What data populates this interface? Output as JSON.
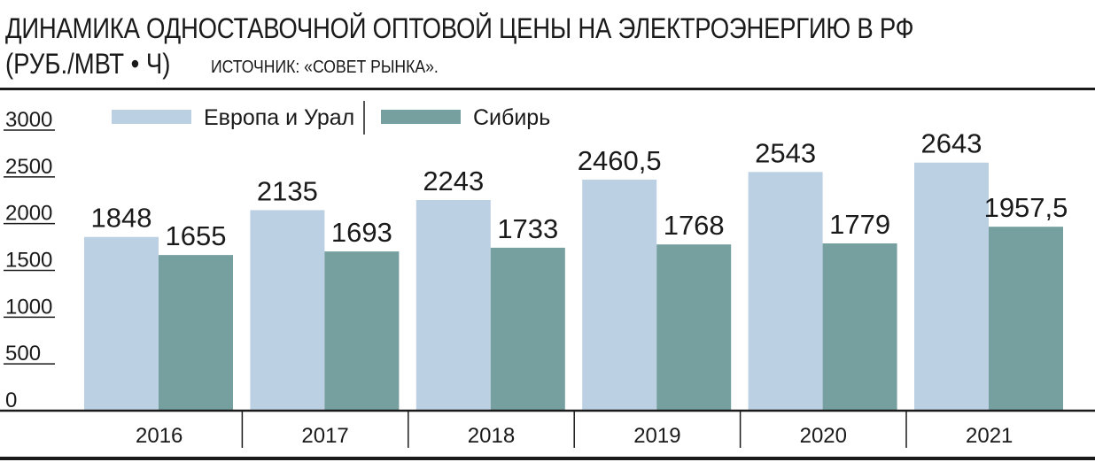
{
  "title": {
    "main": "ДИНАМИКА ОДНОСТАВОЧНОЙ ОПТОВОЙ ЦЕНЫ НА ЭЛЕКТРОЭНЕРГИЮ В РФ",
    "unit": "(РУБ./МВТ • Ч)",
    "source": "ИСТОЧНИК: «СОВЕТ РЫНКА»."
  },
  "colors": {
    "europe_ural": "#bcd0e4",
    "siberia": "#76a09f",
    "axis": "#1a1a1a"
  },
  "chart_data": {
    "type": "bar",
    "categories": [
      "2016",
      "2017",
      "2018",
      "2019",
      "2020",
      "2021"
    ],
    "series": [
      {
        "name": "Европа и Урал",
        "values": [
          1848,
          2135,
          2243,
          2460.5,
          2543,
          2643
        ],
        "labels": [
          "1848",
          "2135",
          "2243",
          "2460,5",
          "2543",
          "2643"
        ]
      },
      {
        "name": "Сибирь",
        "values": [
          1655,
          1693,
          1733,
          1768,
          1779,
          1957.5
        ],
        "labels": [
          "1655",
          "1693",
          "1733",
          "1768",
          "1779",
          "1957,5"
        ]
      }
    ],
    "y_ticks": [
      "3000",
      "2500",
      "2000",
      "1500",
      "1000",
      "500",
      "0"
    ],
    "y_tick_values": [
      3000,
      2500,
      2000,
      1500,
      1000,
      500,
      0
    ],
    "ylim": [
      0,
      3000
    ],
    "legend_position": "top",
    "grid": false
  }
}
